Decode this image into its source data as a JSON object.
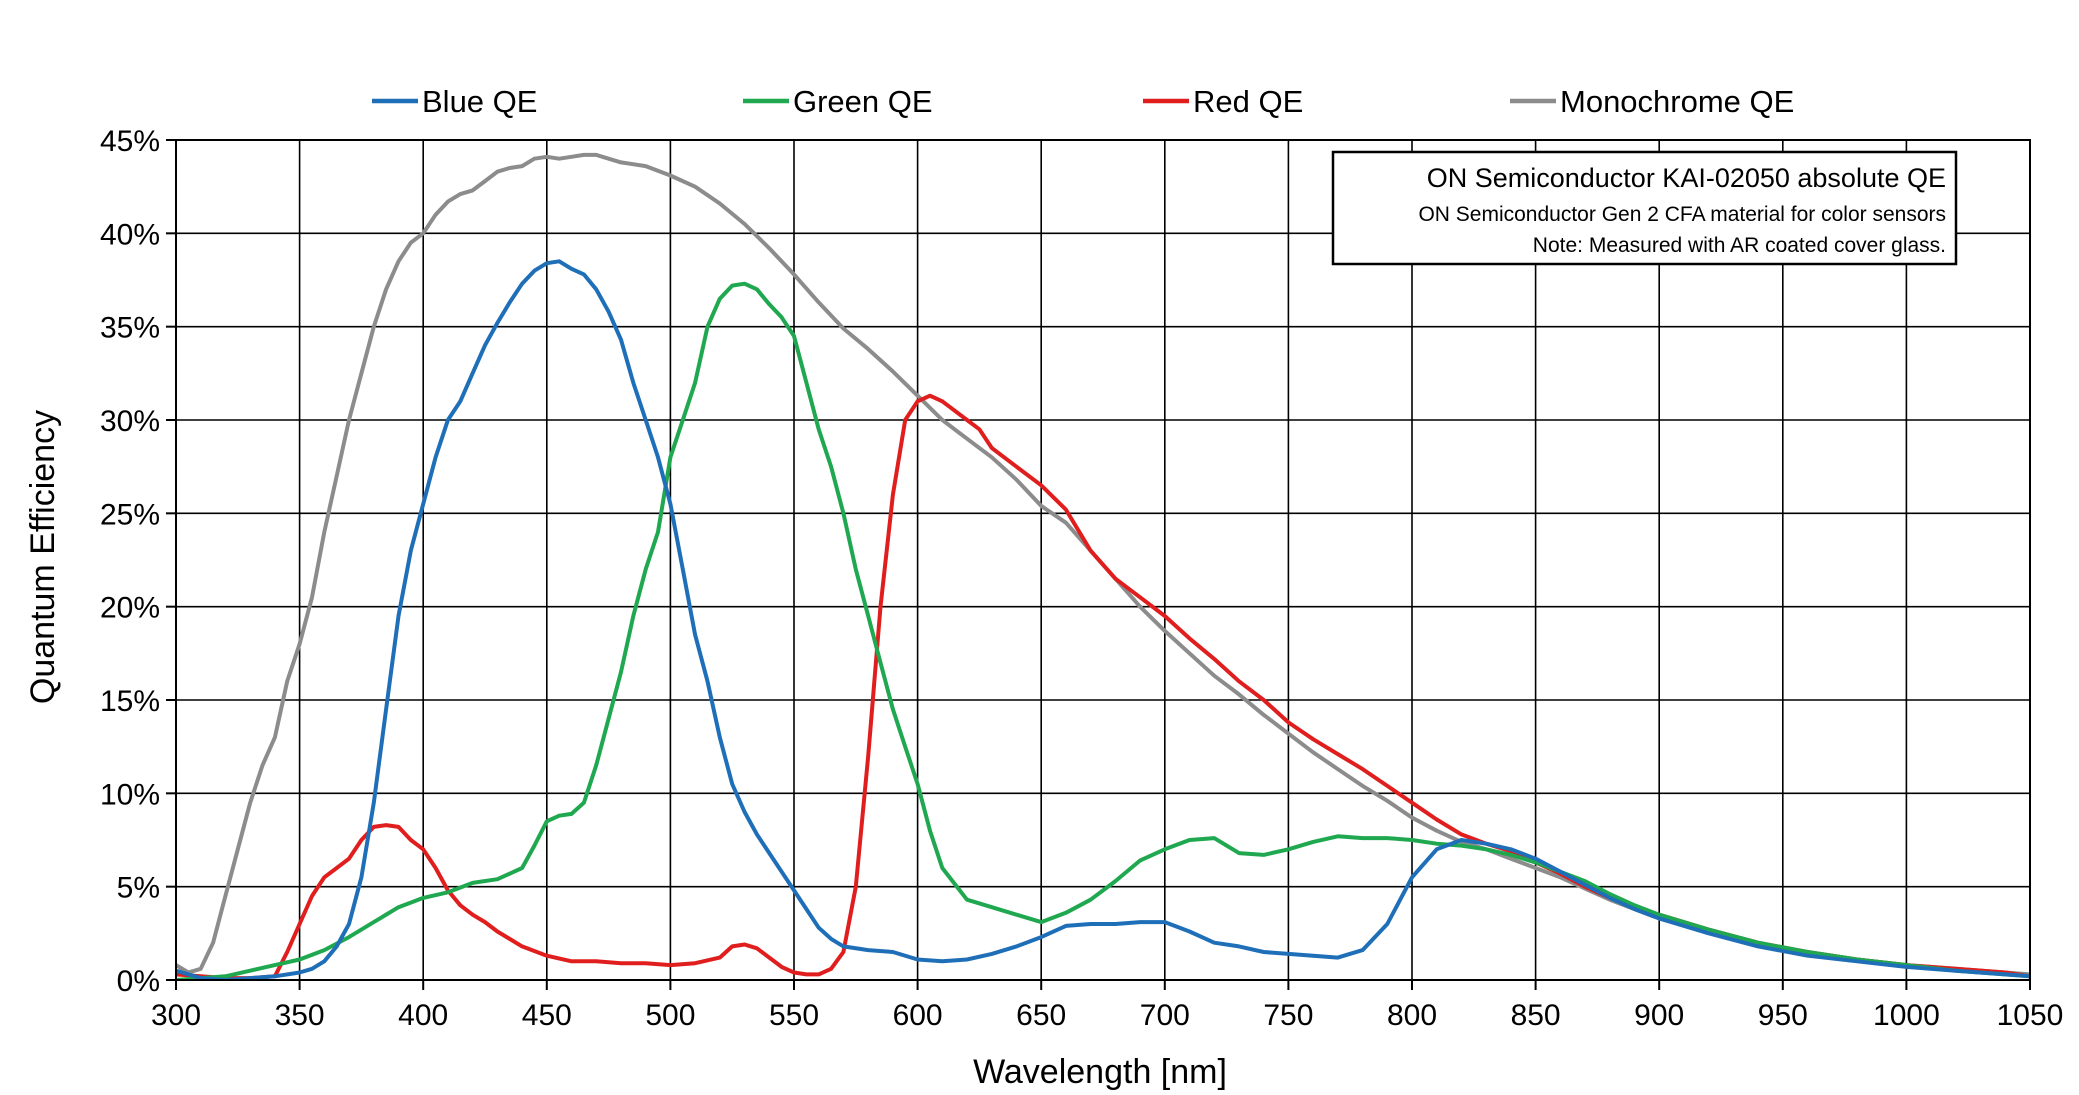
{
  "chart_data": {
    "type": "line",
    "title": "",
    "xlabel": "Wavelength [nm]",
    "ylabel": "Quantum Efficiency",
    "xlim": [
      300,
      1050
    ],
    "ylim": [
      0,
      45
    ],
    "x_ticks": [
      300,
      350,
      400,
      450,
      500,
      550,
      600,
      650,
      700,
      750,
      800,
      850,
      900,
      950,
      1000,
      1050
    ],
    "y_ticks": [
      0,
      5,
      10,
      15,
      20,
      25,
      30,
      35,
      40,
      45
    ],
    "x_tick_labels": [
      "300",
      "350",
      "400",
      "450",
      "500",
      "550",
      "600",
      "650",
      "700",
      "750",
      "800",
      "850",
      "900",
      "950",
      "1000",
      "1050"
    ],
    "y_tick_labels": [
      "0%",
      "5%",
      "10%",
      "15%",
      "20%",
      "25%",
      "30%",
      "35%",
      "40%",
      "45%"
    ],
    "grid": true,
    "legend_position": "top",
    "annotation": {
      "title": "ON Semiconductor KAI-02050 absolute QE",
      "line1": "ON Semiconductor Gen 2 CFA material for color sensors",
      "line2": "Note: Measured with AR coated cover glass."
    },
    "series": [
      {
        "name": "Blue QE",
        "color": "#1f6fb8",
        "x": [
          300,
          310,
          320,
          330,
          340,
          350,
          355,
          360,
          365,
          370,
          375,
          380,
          385,
          390,
          395,
          400,
          405,
          410,
          415,
          420,
          425,
          430,
          435,
          440,
          445,
          450,
          455,
          460,
          465,
          470,
          475,
          480,
          485,
          490,
          495,
          500,
          505,
          510,
          515,
          520,
          525,
          530,
          535,
          540,
          545,
          550,
          555,
          560,
          565,
          570,
          580,
          590,
          600,
          610,
          620,
          630,
          640,
          650,
          660,
          670,
          680,
          690,
          700,
          710,
          720,
          730,
          740,
          750,
          760,
          770,
          780,
          790,
          800,
          810,
          820,
          830,
          840,
          850,
          860,
          870,
          880,
          890,
          900,
          920,
          940,
          960,
          980,
          1000,
          1020,
          1040,
          1050
        ],
        "values": [
          0.5,
          0.1,
          0.0,
          0.1,
          0.2,
          0.4,
          0.6,
          1.0,
          1.8,
          3.0,
          5.5,
          9.5,
          14.5,
          19.5,
          23.0,
          25.5,
          28.0,
          30.0,
          31.0,
          32.5,
          34.0,
          35.2,
          36.3,
          37.3,
          38.0,
          38.4,
          38.5,
          38.1,
          37.8,
          37.0,
          35.8,
          34.3,
          32.0,
          30.0,
          28.0,
          25.5,
          22.0,
          18.5,
          16.0,
          13.0,
          10.5,
          9.0,
          7.8,
          6.8,
          5.8,
          4.8,
          3.8,
          2.8,
          2.2,
          1.8,
          1.6,
          1.5,
          1.1,
          1.0,
          1.1,
          1.4,
          1.8,
          2.3,
          2.9,
          3.0,
          3.0,
          3.1,
          3.1,
          2.6,
          2.0,
          1.8,
          1.5,
          1.4,
          1.3,
          1.2,
          1.6,
          3.0,
          5.5,
          7.0,
          7.5,
          7.3,
          7.0,
          6.5,
          5.8,
          5.1,
          4.4,
          3.8,
          3.3,
          2.5,
          1.8,
          1.3,
          1.0,
          0.7,
          0.5,
          0.3,
          0.2
        ]
      },
      {
        "name": "Green QE",
        "color": "#1fa84f",
        "x": [
          300,
          310,
          320,
          330,
          340,
          350,
          360,
          370,
          380,
          390,
          400,
          410,
          420,
          430,
          440,
          445,
          450,
          455,
          460,
          465,
          470,
          475,
          480,
          485,
          490,
          495,
          500,
          505,
          510,
          515,
          520,
          525,
          530,
          535,
          540,
          545,
          550,
          555,
          560,
          565,
          570,
          575,
          580,
          585,
          590,
          595,
          600,
          605,
          610,
          620,
          630,
          640,
          650,
          660,
          670,
          680,
          690,
          700,
          710,
          720,
          730,
          740,
          750,
          760,
          770,
          780,
          790,
          800,
          810,
          820,
          830,
          840,
          850,
          860,
          870,
          880,
          890,
          900,
          920,
          940,
          960,
          980,
          1000,
          1020,
          1040,
          1050
        ],
        "values": [
          0.0,
          0.1,
          0.2,
          0.5,
          0.8,
          1.1,
          1.6,
          2.3,
          3.1,
          3.9,
          4.4,
          4.7,
          5.2,
          5.4,
          6.0,
          7.2,
          8.5,
          8.8,
          8.9,
          9.5,
          11.5,
          14.0,
          16.5,
          19.5,
          22.0,
          24.0,
          28.0,
          30.0,
          32.0,
          35.0,
          36.5,
          37.2,
          37.3,
          37.0,
          36.2,
          35.5,
          34.5,
          32.0,
          29.5,
          27.5,
          25.0,
          22.0,
          19.5,
          17.0,
          14.5,
          12.5,
          10.5,
          8.0,
          6.0,
          4.3,
          3.9,
          3.5,
          3.1,
          3.6,
          4.3,
          5.3,
          6.4,
          7.0,
          7.5,
          7.6,
          6.8,
          6.7,
          7.0,
          7.4,
          7.7,
          7.6,
          7.6,
          7.5,
          7.3,
          7.2,
          7.0,
          6.7,
          6.3,
          5.8,
          5.3,
          4.6,
          4.0,
          3.5,
          2.7,
          2.0,
          1.5,
          1.1,
          0.8,
          0.5,
          0.3,
          0.2
        ]
      },
      {
        "name": "Red QE",
        "color": "#e01e1e",
        "x": [
          300,
          310,
          320,
          330,
          340,
          345,
          350,
          355,
          360,
          365,
          370,
          375,
          380,
          385,
          390,
          395,
          400,
          405,
          410,
          415,
          420,
          425,
          430,
          440,
          450,
          460,
          470,
          480,
          490,
          500,
          510,
          520,
          525,
          530,
          535,
          540,
          545,
          550,
          555,
          560,
          565,
          570,
          575,
          580,
          585,
          590,
          595,
          600,
          605,
          610,
          615,
          620,
          625,
          630,
          640,
          650,
          660,
          670,
          680,
          690,
          700,
          710,
          720,
          730,
          740,
          750,
          760,
          770,
          780,
          790,
          800,
          810,
          820,
          830,
          840,
          850,
          860,
          870,
          880,
          890,
          900,
          920,
          940,
          960,
          980,
          1000,
          1020,
          1040,
          1050
        ],
        "values": [
          0.3,
          0.2,
          0.1,
          0.1,
          0.2,
          1.5,
          3.0,
          4.5,
          5.5,
          6.0,
          6.5,
          7.5,
          8.2,
          8.3,
          8.2,
          7.5,
          7.0,
          6.0,
          4.8,
          4.0,
          3.5,
          3.1,
          2.6,
          1.8,
          1.3,
          1.0,
          1.0,
          0.9,
          0.9,
          0.8,
          0.9,
          1.2,
          1.8,
          1.9,
          1.7,
          1.2,
          0.7,
          0.4,
          0.3,
          0.3,
          0.6,
          1.5,
          5.0,
          12.0,
          20.0,
          26.0,
          30.0,
          31.0,
          31.3,
          31.0,
          30.5,
          30.0,
          29.5,
          28.5,
          27.5,
          26.5,
          25.2,
          23.0,
          21.5,
          20.5,
          19.5,
          18.3,
          17.2,
          16.0,
          15.0,
          13.8,
          12.9,
          12.1,
          11.3,
          10.4,
          9.5,
          8.6,
          7.8,
          7.3,
          6.9,
          6.3,
          5.7,
          5.0,
          4.4,
          3.9,
          3.5,
          2.7,
          2.0,
          1.5,
          1.1,
          0.8,
          0.6,
          0.4,
          0.2
        ]
      },
      {
        "name": "Monochrome QE",
        "color": "#8c8c8c",
        "x": [
          300,
          305,
          310,
          315,
          320,
          325,
          330,
          335,
          340,
          345,
          350,
          355,
          360,
          365,
          370,
          375,
          380,
          385,
          390,
          395,
          400,
          405,
          410,
          415,
          420,
          425,
          430,
          435,
          440,
          445,
          450,
          455,
          460,
          465,
          470,
          475,
          480,
          490,
          500,
          510,
          520,
          530,
          540,
          550,
          560,
          570,
          580,
          590,
          600,
          610,
          620,
          630,
          640,
          650,
          660,
          670,
          680,
          690,
          700,
          710,
          720,
          730,
          740,
          750,
          760,
          770,
          780,
          790,
          800,
          810,
          820,
          830,
          840,
          850,
          860,
          870,
          880,
          890,
          900,
          920,
          940,
          960,
          980,
          1000,
          1020,
          1040,
          1050
        ],
        "values": [
          0.8,
          0.4,
          0.6,
          2.0,
          4.5,
          7.0,
          9.5,
          11.5,
          13.0,
          16.0,
          18.0,
          20.5,
          24.0,
          27.0,
          30.0,
          32.5,
          35.0,
          37.0,
          38.5,
          39.5,
          40.0,
          41.0,
          41.7,
          42.1,
          42.3,
          42.8,
          43.3,
          43.5,
          43.6,
          44.0,
          44.1,
          44.0,
          44.1,
          44.2,
          44.2,
          44.0,
          43.8,
          43.6,
          43.1,
          42.5,
          41.6,
          40.5,
          39.2,
          37.8,
          36.3,
          34.9,
          33.8,
          32.6,
          31.3,
          30.0,
          29.0,
          28.0,
          26.8,
          25.4,
          24.5,
          23.0,
          21.5,
          20.0,
          18.7,
          17.5,
          16.3,
          15.3,
          14.2,
          13.2,
          12.2,
          11.3,
          10.4,
          9.6,
          8.7,
          8.0,
          7.4,
          7.0,
          6.5,
          6.0,
          5.5,
          4.9,
          4.3,
          3.8,
          3.3,
          2.6,
          1.9,
          1.5,
          1.1,
          0.8,
          0.6,
          0.4,
          0.3
        ]
      }
    ]
  }
}
